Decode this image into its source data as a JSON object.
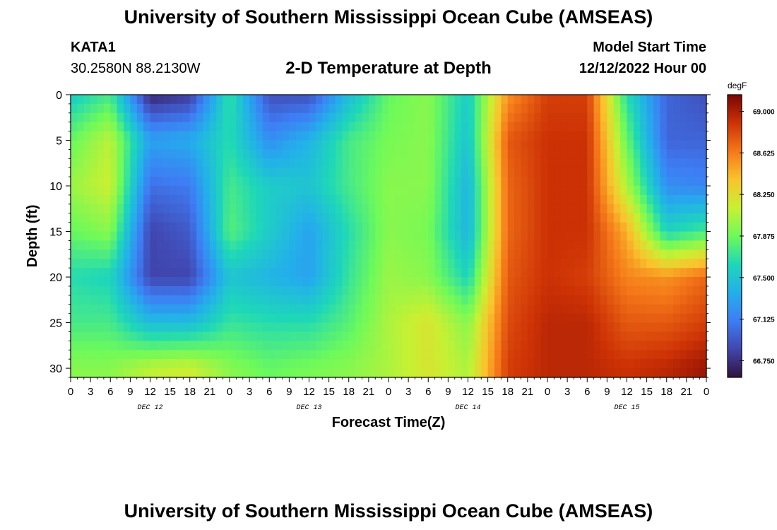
{
  "header": {
    "title": "University of Southern Mississippi Ocean Cube (AMSEAS)",
    "station_id": "KATA1",
    "coordinates": "30.2580N  88.2130W",
    "subtitle": "2-D Temperature at Depth",
    "model_start_label": "Model Start Time",
    "model_start_value": "12/12/2022 Hour 00"
  },
  "footer": {
    "title": "University of Southern Mississippi Ocean Cube (AMSEAS)"
  },
  "chart_data": {
    "type": "heatmap",
    "title": "2-D Temperature at Depth",
    "xlabel": "Forecast Time(Z)",
    "ylabel": "Depth (ft)",
    "colorbar_label": "degF",
    "x_tick_labels": [
      "0",
      "3",
      "6",
      "9",
      "12",
      "15",
      "18",
      "21",
      "0",
      "3",
      "6",
      "9",
      "12",
      "15",
      "18",
      "21",
      "0",
      "3",
      "6",
      "9",
      "12",
      "15",
      "18",
      "21",
      "0",
      "3",
      "6",
      "9",
      "12",
      "15",
      "18",
      "21",
      "0"
    ],
    "x_range_hours": [
      0,
      96
    ],
    "day_labels": [
      {
        "label": "DEC 12",
        "hour": 12
      },
      {
        "label": "DEC 13",
        "hour": 36
      },
      {
        "label": "DEC 14",
        "hour": 60
      },
      {
        "label": "DEC 15",
        "hour": 84
      }
    ],
    "y_ticks": [
      0,
      5,
      10,
      15,
      20,
      25,
      30
    ],
    "y_range": [
      0,
      31
    ],
    "y_inverted": true,
    "colorbar_ticks": [
      "69.000",
      "68.625",
      "68.250",
      "67.875",
      "67.500",
      "67.125",
      "66.750"
    ],
    "colorbar_range": [
      66.6,
      69.15
    ],
    "grid": false,
    "times_hours": [
      0,
      6,
      12,
      18,
      24,
      30,
      36,
      42,
      48,
      54,
      60,
      66,
      72,
      78,
      84,
      90,
      96
    ],
    "depths_ft": [
      0,
      5,
      10,
      15,
      20,
      25,
      30
    ],
    "values_degF": [
      [
        67.55,
        67.75,
        66.7,
        66.8,
        67.7,
        66.9,
        66.9,
        67.45,
        67.85,
        67.95,
        67.55,
        68.55,
        68.85,
        68.85,
        67.65,
        67.0,
        66.9
      ],
      [
        67.85,
        68.1,
        67.3,
        67.35,
        67.65,
        67.2,
        67.4,
        67.75,
        67.9,
        67.95,
        67.5,
        68.75,
        68.9,
        68.9,
        67.85,
        67.0,
        67.0
      ],
      [
        68.0,
        68.15,
        67.05,
        67.1,
        67.75,
        67.55,
        67.5,
        67.75,
        67.95,
        67.95,
        67.4,
        68.7,
        68.9,
        68.9,
        68.05,
        67.2,
        67.15
      ],
      [
        67.85,
        67.95,
        66.85,
        66.95,
        67.8,
        67.55,
        67.3,
        67.65,
        67.95,
        67.9,
        67.4,
        68.7,
        68.9,
        68.9,
        68.45,
        67.6,
        67.75
      ],
      [
        67.65,
        67.6,
        66.85,
        66.85,
        67.5,
        67.4,
        67.3,
        67.7,
        68.0,
        67.95,
        67.6,
        68.75,
        68.9,
        68.85,
        68.6,
        68.55,
        68.7
      ],
      [
        67.75,
        67.75,
        67.45,
        67.45,
        67.7,
        67.65,
        67.65,
        67.8,
        68.05,
        68.2,
        67.95,
        68.8,
        68.95,
        68.95,
        68.75,
        68.75,
        68.85
      ],
      [
        67.95,
        67.95,
        68.1,
        68.15,
        67.95,
        67.85,
        67.9,
        67.95,
        68.05,
        68.2,
        68.05,
        68.85,
        68.95,
        68.95,
        68.9,
        68.95,
        69.05
      ]
    ]
  }
}
